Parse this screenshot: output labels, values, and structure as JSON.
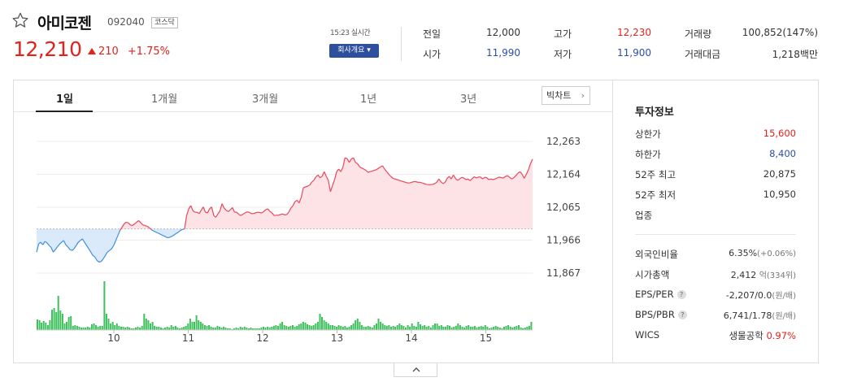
{
  "stock": {
    "name": "아미코젠",
    "code": "092040",
    "market_badge": "코스닥",
    "price": "12,210",
    "change": "210",
    "change_pct": "+1.75%",
    "realtime": "15:23 실시간",
    "company_button": "회사개요 ▾"
  },
  "quote": {
    "prev_close_label": "전일",
    "prev_close": "12,000",
    "high_label": "고가",
    "high": "12,230",
    "volume_label": "거래량",
    "volume": "100,852(147%)",
    "open_label": "시가",
    "open": "11,990",
    "low_label": "저가",
    "low": "11,900",
    "value_label": "거래대금",
    "value": "1,218백만"
  },
  "tabs": [
    "1일",
    "1개월",
    "3개월",
    "1년",
    "3년"
  ],
  "big_chart_button": "빅차트",
  "chart_data": {
    "type": "line",
    "title": "",
    "y_ticks": [
      12263,
      12164,
      12065,
      11966,
      11867
    ],
    "y_tick_labels": [
      "12,263",
      "12,164",
      "12,065",
      "11,966",
      "11,867"
    ],
    "ylim": [
      11867,
      12263
    ],
    "x_ticks": [
      "10",
      "11",
      "12",
      "13",
      "14",
      "15"
    ],
    "baseline": 12000,
    "colors": {
      "up": "#e8475a",
      "down": "#3d8fe0",
      "up_fill": "#fde3e6",
      "down_fill": "#dbeafb",
      "volume": "#3ec05c"
    },
    "price_series": [
      11930,
      11955,
      11960,
      11952,
      11962,
      11958,
      11950,
      11944,
      11930,
      11938,
      11946,
      11954,
      11960,
      11965,
      11952,
      11946,
      11938,
      11935,
      11940,
      11950,
      11960,
      11965,
      11970,
      11960,
      11950,
      11940,
      11930,
      11920,
      11915,
      11905,
      11900,
      11902,
      11910,
      11920,
      11930,
      11935,
      11940,
      11950,
      11965,
      11980,
      11995,
      12005,
      12015,
      12020,
      12018,
      12012,
      12010,
      12015,
      12020,
      12025,
      12018,
      12012,
      12010,
      12008,
      12004,
      11998,
      11994,
      11991,
      11988,
      11985,
      11982,
      11979,
      11976,
      11973,
      11975,
      11978,
      11982,
      11986,
      11990,
      11995,
      11998,
      12000,
      12040,
      12060,
      12070,
      12055,
      12050,
      12050,
      12046,
      12056,
      12066,
      12050,
      12048,
      12060,
      12066,
      12040,
      12035,
      12045,
      12054,
      12076,
      12062,
      12056,
      12052,
      12058,
      12064,
      12050,
      12050,
      12044,
      12040,
      12044,
      12048,
      12051,
      12050,
      12046,
      12046,
      12048,
      12050,
      12049,
      12048,
      12052,
      12058,
      12060,
      12052,
      12048,
      12040,
      12041,
      12041,
      12043,
      12045,
      12042,
      12043,
      12050,
      12062,
      12070,
      12082,
      12086,
      12078,
      12095,
      12124,
      12126,
      12128,
      12132,
      12140,
      12146,
      12156,
      12162,
      12154,
      12158,
      12172,
      12158,
      12146,
      12112,
      12130,
      12148,
      12172,
      12180,
      12172,
      12186,
      12214,
      12211,
      12200,
      12210,
      12214,
      12200,
      12196,
      12187,
      12183,
      12180,
      12176,
      12170,
      12172,
      12174,
      12176,
      12178,
      12182,
      12186,
      12190,
      12180,
      12172,
      12164,
      12158,
      12152,
      12150,
      12148,
      12146,
      12144,
      12142,
      12140,
      12138,
      12138,
      12140,
      12142,
      12142,
      12140,
      12140,
      12138,
      12136,
      12134,
      12133,
      12133,
      12134,
      12136,
      12140,
      12150,
      12142,
      12136,
      12140,
      12152,
      12158,
      12150,
      12162,
      12152,
      12146,
      12150,
      12155,
      12153,
      12148,
      12150,
      12145,
      12151,
      12157,
      12153,
      12156,
      12156,
      12150,
      12155,
      12154,
      12148,
      12150,
      12148,
      12150,
      12153,
      12156,
      12154,
      12153,
      12158,
      12160,
      12155,
      12150,
      12154,
      12160,
      12168,
      12172,
      12164,
      12152,
      12164,
      12178,
      12196,
      12210
    ],
    "volume_series": [
      13,
      12,
      9,
      11,
      9,
      6,
      12,
      25,
      27,
      22,
      42,
      24,
      20,
      8,
      10,
      16,
      17,
      5,
      6,
      5,
      4,
      3,
      3,
      3,
      4,
      3,
      7,
      8,
      6,
      4,
      5,
      5,
      60,
      20,
      14,
      8,
      10,
      6,
      8,
      5,
      4,
      4,
      3,
      4,
      3,
      2,
      2,
      3,
      4,
      3,
      5,
      20,
      14,
      12,
      8,
      10,
      5,
      4,
      4,
      3,
      2,
      3,
      4,
      3,
      6,
      4,
      5,
      3,
      2,
      3,
      4,
      5,
      8,
      14,
      10,
      10,
      18,
      12,
      10,
      8,
      6,
      5,
      6,
      4,
      3,
      3,
      5,
      4,
      3,
      4,
      3,
      2,
      2,
      1,
      2,
      3,
      2,
      4,
      3,
      4,
      3,
      2,
      3,
      2,
      2,
      2,
      2,
      3,
      4,
      3,
      4,
      3,
      4,
      5,
      6,
      5,
      8,
      10,
      6,
      5,
      4,
      5,
      6,
      4,
      5,
      7,
      8,
      10,
      9,
      7,
      6,
      5,
      6,
      8,
      10,
      20,
      16,
      12,
      10,
      8,
      6,
      6,
      5,
      4,
      6,
      5,
      4,
      5,
      3,
      4,
      6,
      8,
      12,
      14,
      10,
      6,
      4,
      4,
      5,
      4,
      3,
      6,
      8,
      14,
      10,
      8,
      6,
      5,
      6,
      4,
      5,
      4,
      6,
      8,
      6,
      5,
      3,
      6,
      4,
      8,
      5,
      4,
      10,
      7,
      5,
      6,
      4,
      5,
      3,
      6,
      8,
      8,
      5,
      6,
      4,
      4,
      6,
      5,
      3,
      4,
      5,
      8,
      6,
      4,
      3,
      5,
      6,
      4,
      4,
      5,
      3,
      4,
      5,
      4,
      6,
      4,
      2,
      3,
      4,
      5,
      4,
      3,
      2,
      4,
      5,
      6,
      4,
      3,
      4,
      5,
      6,
      3,
      2,
      3,
      4,
      5,
      10
    ]
  },
  "invest": {
    "title": "투자정보",
    "upper_label": "상한가",
    "upper": "15,600",
    "lower_label": "하한가",
    "lower": "8,400",
    "w52_high_label": "52주 최고",
    "w52_high": "20,875",
    "w52_low_label": "52주 최저",
    "w52_low": "10,950",
    "sector_label": "업종",
    "foreign_label": "외국인비율",
    "foreign": "6.35%",
    "foreign_chg": "(+0.06%)",
    "mcap_label": "시가총액",
    "mcap": "2,412",
    "mcap_unit": "억(334위)",
    "eps_label": "EPS/PER",
    "eps": "-2,207/0.0",
    "eps_unit": "(원/배)",
    "bps_label": "BPS/PBR",
    "bps": "6,741/1.78",
    "bps_unit": "(원/배)",
    "wics_label": "WICS",
    "wics": "생물공학",
    "wics_pct": "0.97%",
    "help": "?"
  }
}
